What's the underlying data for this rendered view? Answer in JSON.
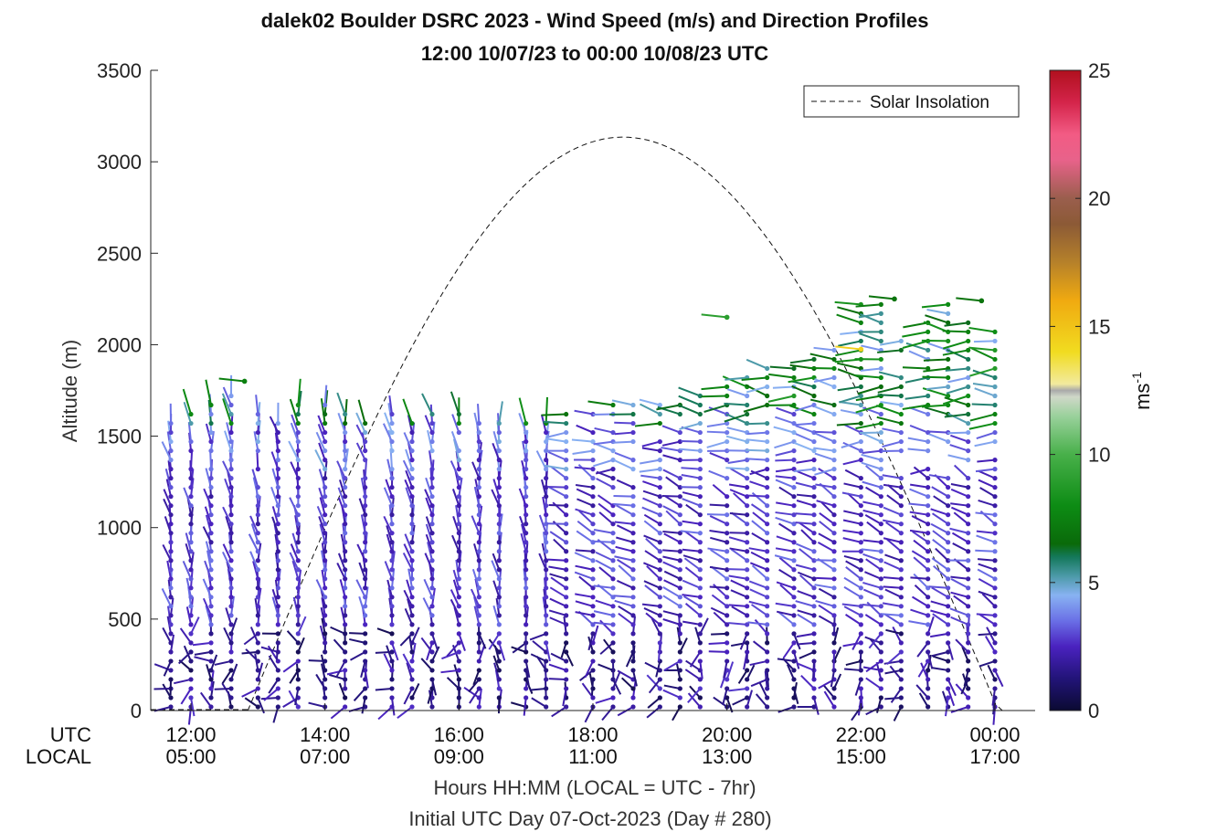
{
  "chart_data": {
    "type": "wind-barb-profile",
    "title": "dalek02 Boulder DSRC 2023 - Wind Speed (m/s) and Direction Profiles",
    "subtitle": "12:00 10/07/23 to 00:00 10/08/23  UTC",
    "ylabel": "Altitude (m)",
    "xlabel": "Hours HH:MM  (LOCAL = UTC - 7hr)",
    "xlabel2": "Initial UTC Day 07-Oct-2023 (Day # 280)",
    "row_utc_label": "UTC",
    "row_local_label": "LOCAL",
    "ylim": [
      0,
      3500
    ],
    "y_ticks": [
      0,
      500,
      1000,
      1500,
      2000,
      2500,
      3000,
      3500
    ],
    "xlim_hours": [
      11.4,
      24.6
    ],
    "x_ticks": [
      {
        "hour": 12,
        "utc": "12:00",
        "local": "05:00"
      },
      {
        "hour": 14,
        "utc": "14:00",
        "local": "07:00"
      },
      {
        "hour": 16,
        "utc": "16:00",
        "local": "09:00"
      },
      {
        "hour": 18,
        "utc": "18:00",
        "local": "11:00"
      },
      {
        "hour": 20,
        "utc": "20:00",
        "local": "13:00"
      },
      {
        "hour": 22,
        "utc": "22:00",
        "local": "15:00"
      },
      {
        "hour": 24,
        "utc": "00:00",
        "local": "17:00"
      }
    ],
    "colorbar": {
      "label": "ms",
      "label_exponent": "-1",
      "range": [
        0,
        25
      ],
      "ticks": [
        0,
        5,
        10,
        15,
        20,
        25
      ]
    },
    "legend": {
      "entry": "Solar Insolation",
      "position": "top-right",
      "style": "dashed-black"
    },
    "solar_insolation": {
      "start_hour": 12.85,
      "peak_hour": 18.45,
      "end_hour": 24.6,
      "peak_altitude_equiv": 3135
    },
    "profile_times_hours": [
      11.7,
      12.0,
      12.3,
      12.6,
      13.0,
      13.3,
      13.6,
      14.0,
      14.3,
      14.6,
      15.0,
      15.3,
      15.6,
      16.0,
      16.3,
      16.6,
      17.0,
      17.3,
      17.6,
      18.0,
      18.3,
      18.6,
      19.0,
      19.3,
      19.6,
      20.0,
      20.3,
      20.6,
      21.0,
      21.3,
      21.6,
      22.0,
      22.3,
      22.6,
      23.0,
      23.3,
      23.6,
      24.0
    ],
    "profile_top_altitudes_m": [
      1600,
      1650,
      1700,
      1750,
      1650,
      1600,
      1700,
      1700,
      1650,
      1650,
      1650,
      1650,
      1650,
      1650,
      1600,
      1600,
      1600,
      1600,
      1650,
      1650,
      1700,
      1700,
      1700,
      1750,
      1750,
      1800,
      1850,
      1900,
      1900,
      1950,
      2000,
      2250,
      2250,
      2050,
      2150,
      2250,
      2200,
      2100
    ],
    "notable_barbs": [
      {
        "hour": 12.8,
        "altitude": 1800,
        "speed": 7.5
      },
      {
        "hour": 20.0,
        "altitude": 2150,
        "speed": 9.0
      },
      {
        "hour": 22.0,
        "altitude": 1975,
        "speed": 14.5
      },
      {
        "hour": 22.5,
        "altitude": 2250,
        "speed": 7.0
      },
      {
        "hour": 23.8,
        "altitude": 2240,
        "speed": 7.0
      }
    ]
  }
}
